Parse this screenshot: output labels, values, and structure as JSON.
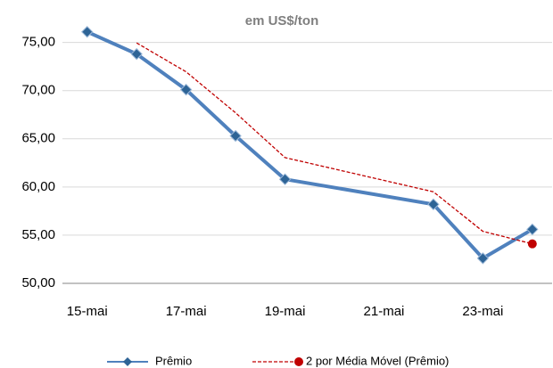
{
  "chart_data": {
    "type": "line",
    "subtitle": "em US$/ton",
    "x": [
      15,
      16,
      17,
      18,
      19,
      22,
      23,
      24
    ],
    "xlim": [
      14.5,
      24.4
    ],
    "xticks": [
      {
        "value": 15,
        "label": "15-mai"
      },
      {
        "value": 17,
        "label": "17-mai"
      },
      {
        "value": 19,
        "label": "19-mai"
      },
      {
        "value": 21,
        "label": "21-mai"
      },
      {
        "value": 23,
        "label": "23-mai"
      }
    ],
    "ylim": [
      50,
      77
    ],
    "yticks": [
      {
        "value": 50,
        "label": "50,00"
      },
      {
        "value": 55,
        "label": "55,00"
      },
      {
        "value": 60,
        "label": "60,00"
      },
      {
        "value": 65,
        "label": "65,00"
      },
      {
        "value": 70,
        "label": "70,00"
      },
      {
        "value": 75,
        "label": "75,00"
      }
    ],
    "grid": true,
    "legend": "bottom",
    "series": [
      {
        "name": "Prêmio",
        "color": "#4f81bd",
        "marker_color": "#2e6496",
        "values": [
          76.1,
          73.8,
          70.1,
          65.3,
          60.8,
          58.2,
          52.6,
          55.6
        ]
      },
      {
        "name": "2 por Média Móvel (Prêmio)",
        "color": "#c00000",
        "dashed": true,
        "values": [
          null,
          74.95,
          71.95,
          67.7,
          63.05,
          59.5,
          55.4,
          54.1
        ]
      }
    ]
  }
}
